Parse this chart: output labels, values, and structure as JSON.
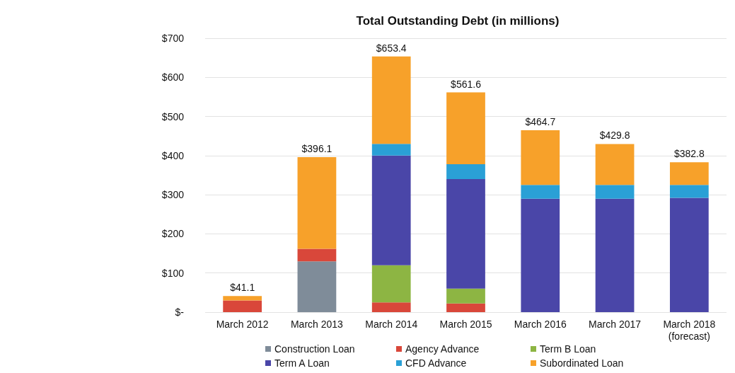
{
  "chart_data": {
    "type": "bar",
    "title": "Total Outstanding Debt (in millions)",
    "stacked": true,
    "categories": [
      "March 2012",
      "March 2013",
      "March 2014",
      "March 2015",
      "March 2016",
      "March 2017",
      "March 2018\n(forecast)"
    ],
    "series": [
      {
        "name": "Construction Loan",
        "color": "#7f8c99",
        "values": [
          null,
          130,
          null,
          null,
          null,
          null,
          null
        ]
      },
      {
        "name": "Agency Advance",
        "color": "#d9473a",
        "values": [
          30,
          32,
          25,
          22,
          null,
          null,
          null
        ]
      },
      {
        "name": "Term B Loan",
        "color": "#8db543",
        "values": [
          null,
          null,
          95,
          38,
          null,
          null,
          null
        ]
      },
      {
        "name": "Term A Loan",
        "color": "#4a46a8",
        "values": [
          null,
          null,
          280,
          280,
          290,
          290,
          292
        ]
      },
      {
        "name": "CFD Advance",
        "color": "#2aa0d6",
        "values": [
          null,
          null,
          30,
          38,
          35,
          35,
          33
        ]
      },
      {
        "name": "Subordinated Loan",
        "color": "#f7a12a",
        "values": [
          11.1,
          234.1,
          223.4,
          183.6,
          139.7,
          104.8,
          57.8
        ]
      }
    ],
    "totals": [
      "$41.1",
      "$396.1",
      "$653.4",
      "$561.6",
      "$464.7",
      "$429.8",
      "$382.8"
    ],
    "ylim": [
      0,
      700
    ],
    "yticks": [
      {
        "value": 0,
        "label": "$-"
      },
      {
        "value": 100,
        "label": "$100"
      },
      {
        "value": 200,
        "label": "$200"
      },
      {
        "value": 300,
        "label": "$300"
      },
      {
        "value": 400,
        "label": "$400"
      },
      {
        "value": 500,
        "label": "$500"
      },
      {
        "value": 600,
        "label": "$600"
      },
      {
        "value": 700,
        "label": "$700"
      }
    ],
    "grid": "y",
    "legend": "bottom"
  }
}
